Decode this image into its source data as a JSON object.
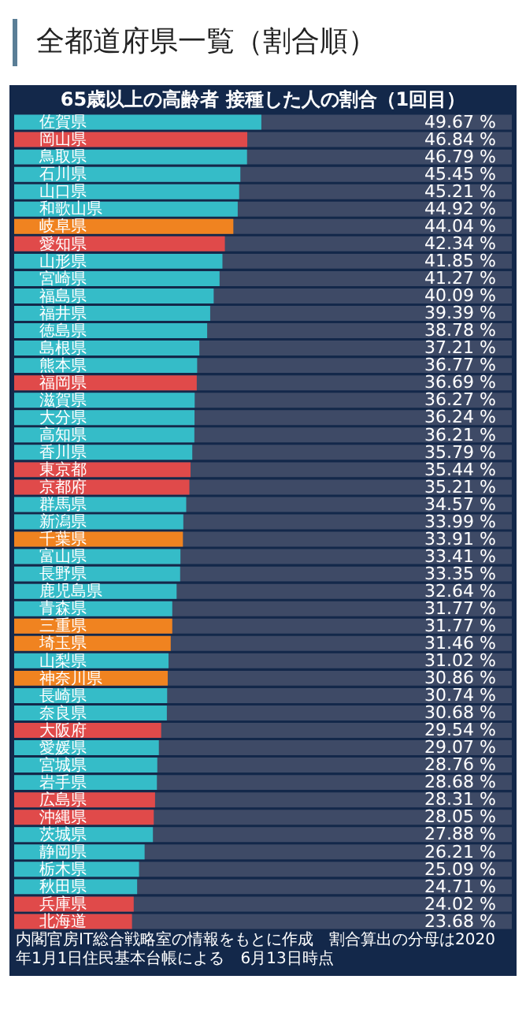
{
  "chart_data": {
    "type": "bar",
    "orientation": "horizontal",
    "title": "全都道府県一覧（割合順）",
    "subtitle": "65歳以上の高齢者 接種した人の割合（1回目）",
    "categories": [
      "佐賀県",
      "岡山県",
      "鳥取県",
      "石川県",
      "山口県",
      "和歌山県",
      "岐阜県",
      "愛知県",
      "山形県",
      "宮崎県",
      "福島県",
      "福井県",
      "徳島県",
      "島根県",
      "熊本県",
      "福岡県",
      "滋賀県",
      "大分県",
      "高知県",
      "香川県",
      "東京都",
      "京都府",
      "群馬県",
      "新潟県",
      "千葉県",
      "富山県",
      "長野県",
      "鹿児島県",
      "青森県",
      "三重県",
      "埼玉県",
      "山梨県",
      "神奈川県",
      "長崎県",
      "奈良県",
      "大阪府",
      "愛媛県",
      "宮城県",
      "岩手県",
      "広島県",
      "沖縄県",
      "茨城県",
      "静岡県",
      "栃木県",
      "秋田県",
      "兵庫県",
      "北海道"
    ],
    "values": [
      49.67,
      46.84,
      46.79,
      45.45,
      45.21,
      44.92,
      44.04,
      42.34,
      41.85,
      41.27,
      40.09,
      39.39,
      38.78,
      37.21,
      36.77,
      36.69,
      36.27,
      36.24,
      36.21,
      35.79,
      35.44,
      35.21,
      34.57,
      33.99,
      33.91,
      33.41,
      33.35,
      32.64,
      31.77,
      31.77,
      31.46,
      31.02,
      30.86,
      30.74,
      30.68,
      29.54,
      29.07,
      28.76,
      28.68,
      28.31,
      28.05,
      27.88,
      26.21,
      25.09,
      24.71,
      24.02,
      23.68
    ],
    "value_labels": [
      "49.67 %",
      "46.84 %",
      "46.79 %",
      "45.45 %",
      "45.21 %",
      "44.92 %",
      "44.04 %",
      "42.34 %",
      "41.85 %",
      "41.27 %",
      "40.09 %",
      "39.39 %",
      "38.78 %",
      "37.21 %",
      "36.77 %",
      "36.69 %",
      "36.27 %",
      "36.24 %",
      "36.21 %",
      "35.79 %",
      "35.44 %",
      "35.21 %",
      "34.57 %",
      "33.99 %",
      "33.91 %",
      "33.41 %",
      "33.35 %",
      "32.64 %",
      "31.77 %",
      "31.77 %",
      "31.46 %",
      "31.02 %",
      "30.86 %",
      "30.74 %",
      "30.68 %",
      "29.54 %",
      "29.07 %",
      "28.76 %",
      "28.68 %",
      "28.31 %",
      "28.05 %",
      "27.88 %",
      "26.21 %",
      "25.09 %",
      "24.71 %",
      "24.02 %",
      "23.68 %"
    ],
    "colors": [
      "#35bcc8",
      "#e04a4a",
      "#35bcc8",
      "#35bcc8",
      "#35bcc8",
      "#35bcc8",
      "#f08320",
      "#e04a4a",
      "#35bcc8",
      "#35bcc8",
      "#35bcc8",
      "#35bcc8",
      "#35bcc8",
      "#35bcc8",
      "#35bcc8",
      "#e04a4a",
      "#35bcc8",
      "#35bcc8",
      "#35bcc8",
      "#35bcc8",
      "#e04a4a",
      "#e04a4a",
      "#35bcc8",
      "#35bcc8",
      "#f08320",
      "#35bcc8",
      "#35bcc8",
      "#35bcc8",
      "#35bcc8",
      "#f08320",
      "#f08320",
      "#35bcc8",
      "#f08320",
      "#35bcc8",
      "#35bcc8",
      "#e04a4a",
      "#35bcc8",
      "#35bcc8",
      "#35bcc8",
      "#e04a4a",
      "#e04a4a",
      "#35bcc8",
      "#35bcc8",
      "#35bcc8",
      "#35bcc8",
      "#e04a4a",
      "#e04a4a"
    ],
    "xlim": [
      0,
      100
    ],
    "annotations": [
      "内閣官房IT総合戦略室の情報をもとに作成　割合算出の分母は2020年1月1日住民基本台帳による　6月13日時点"
    ]
  }
}
